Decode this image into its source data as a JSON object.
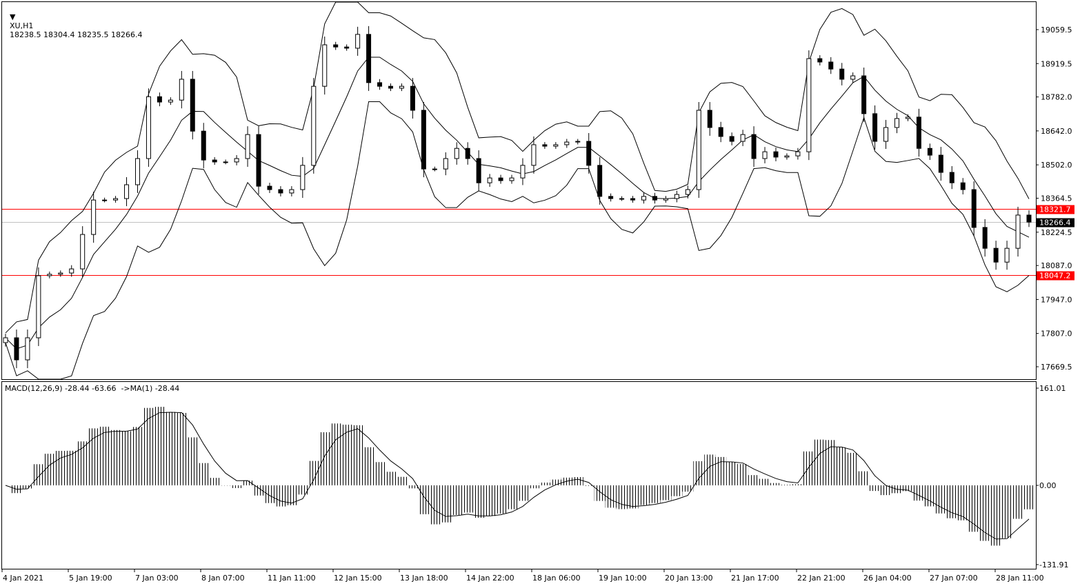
{
  "header": {
    "symbol": "XU,H1",
    "ohlc": "18238.5 18304.4 18235.5 18266.4"
  },
  "macd_header": {
    "label": "MACD(12,26,9) -28.44 -63.66  ->MA(1) -28.44"
  },
  "colors": {
    "background": "#ffffff",
    "candles": "#000000",
    "level_line": "#ff0000",
    "bid_line": "#c0c0c0",
    "bid_label_bg": "#000000",
    "level_label_bg": "#ff0000"
  },
  "chart_data": {
    "type": "candlestick",
    "indicators": [
      "Bollinger Bands",
      "MACD(12,26,9)"
    ],
    "ylim": [
      17640,
      19140
    ],
    "y_ticks": [
      "19059.5",
      "18919.5",
      "18782.0",
      "18642.0",
      "18502.0",
      "18364.5",
      "18224.5",
      "18087.0",
      "17947.0",
      "17807.0",
      "17669.5"
    ],
    "y_tick_values": [
      19059.5,
      18919.5,
      18782.0,
      18642.0,
      18502.0,
      18364.5,
      18224.5,
      18087.0,
      17947.0,
      17807.0,
      17669.5
    ],
    "x_ticks": [
      "4 Jan 2021",
      "5 Jan 19:00",
      "7 Jan 03:00",
      "8 Jan 07:00",
      "11 Jan 11:00",
      "12 Jan 15:00",
      "13 Jan 18:00",
      "14 Jan 22:00",
      "18 Jan 06:00",
      "19 Jan 10:00",
      "20 Jan 13:00",
      "21 Jan 17:00",
      "22 Jan 21:00",
      "26 Jan 04:00",
      "27 Jan 07:00",
      "28 Jan 11:00"
    ],
    "closes": [
      17789,
      17698,
      17789,
      18045,
      18051,
      18056,
      18073,
      18215,
      18357,
      18357,
      18363,
      18420,
      18528,
      18783,
      18761,
      18769,
      18855,
      18641,
      18522,
      18514,
      18514,
      18528,
      18627,
      18414,
      18400,
      18386,
      18400,
      18500,
      18826,
      18997,
      18988,
      18983,
      19040,
      18841,
      18826,
      18818,
      18826,
      18727,
      18485,
      18485,
      18528,
      18570,
      18528,
      18428,
      18448,
      18437,
      18448,
      18500,
      18585,
      18579,
      18585,
      18596,
      18599,
      18500,
      18372,
      18363,
      18363,
      18357,
      18372,
      18357,
      18363,
      18380,
      18400,
      18727,
      18656,
      18619,
      18599,
      18627,
      18528,
      18556,
      18534,
      18539,
      18556,
      18940,
      18926,
      18897,
      18855,
      18869,
      18713,
      18599,
      18656,
      18693,
      18699,
      18570,
      18542,
      18471,
      18428,
      18400,
      18244,
      18158,
      18101,
      18158,
      18295,
      18266
    ],
    "levels": [
      {
        "value": 18321.7,
        "label": "18321.7",
        "color": "#ff0000"
      },
      {
        "value": 18047.2,
        "label": "18047.2",
        "color": "#ff0000"
      }
    ],
    "bid": {
      "value": 18266.4,
      "label": "18266.4"
    },
    "macd_axis": {
      "ticks": [
        "161.01",
        "0.00",
        "-131.91"
      ],
      "values": [
        161.01,
        0,
        -131.91
      ]
    }
  }
}
